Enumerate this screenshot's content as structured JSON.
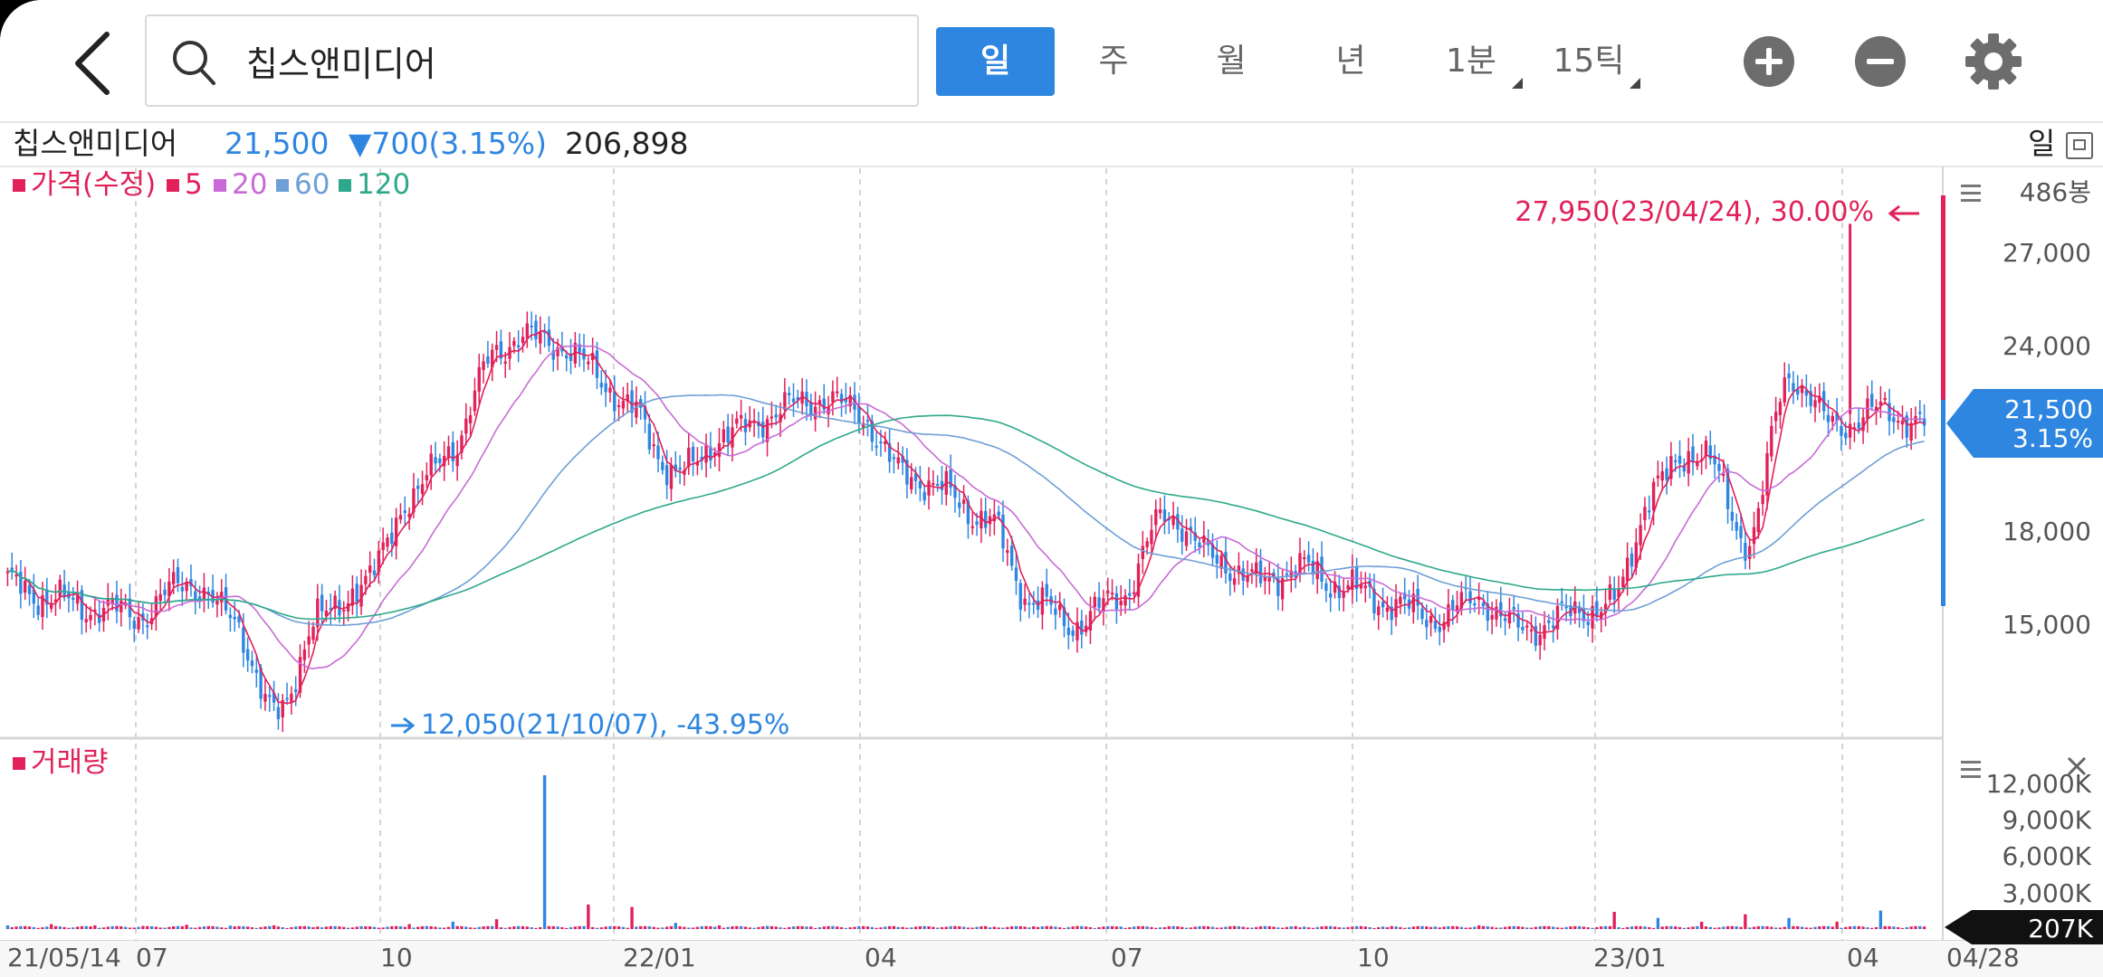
{
  "search": {
    "query": "칩스앤미디어"
  },
  "periods": [
    {
      "label": "일",
      "active": true
    },
    {
      "label": "주",
      "active": false
    },
    {
      "label": "월",
      "active": false
    },
    {
      "label": "년",
      "active": false
    },
    {
      "label": "1분",
      "active": false
    },
    {
      "label": "15틱",
      "active": false
    }
  ],
  "info": {
    "name": "칩스앤미디어",
    "price": "21,500",
    "change": "▼700(3.15%)",
    "volume": "206,898",
    "unit": "일"
  },
  "colors": {
    "up": "#e0215a",
    "down": "#2f86e0",
    "ma5": "#e0215a",
    "ma20": "#c86bd6",
    "ma60": "#6e9fd6",
    "ma120": "#2ea88a",
    "accent": "#2f86e0"
  },
  "chart_data": {
    "type": "candlestick",
    "legend": [
      "가격(수정)",
      "5",
      "20",
      "60",
      "120"
    ],
    "y_ticks": [
      "486봉",
      "27,000",
      "24,000",
      "18,000",
      "15,000"
    ],
    "current_price_label": "21,500",
    "current_change_label": "3.15%",
    "high_annotation": "27,950(23/04/24), 30.00%",
    "low_annotation": "12,050(21/10/07), -43.95%",
    "x_ticks": [
      "21/05/14",
      "07",
      "10",
      "22/01",
      "04",
      "07",
      "10",
      "23/01",
      "04",
      "04/28"
    ],
    "volume_title": "거래량",
    "volume_ticks": [
      "12,000K",
      "9,000K",
      "6,000K",
      "3,000K"
    ],
    "current_volume_label": "207K",
    "price_series": [
      [
        "21/05/14",
        16300
      ],
      [
        "21/06",
        15800
      ],
      [
        "21/07",
        15500
      ],
      [
        "21/08",
        15300
      ],
      [
        "21/08b",
        16400
      ],
      [
        "21/09",
        15300
      ],
      [
        "21/10/07",
        12050
      ],
      [
        "21/10b",
        15200
      ],
      [
        "21/11",
        16300
      ],
      [
        "21/11b",
        19000
      ],
      [
        "21/12",
        20800
      ],
      [
        "21/12b",
        24000
      ],
      [
        "22/01",
        24300
      ],
      [
        "22/01b",
        23400
      ],
      [
        "22/02",
        21900
      ],
      [
        "22/03",
        19800
      ],
      [
        "22/03b",
        21000
      ],
      [
        "22/04",
        21700
      ],
      [
        "22/04b",
        22300
      ],
      [
        "22/05",
        22000
      ],
      [
        "22/05b",
        20000
      ],
      [
        "22/06",
        19300
      ],
      [
        "22/06b",
        18300
      ],
      [
        "22/07",
        15700
      ],
      [
        "22/07b",
        15000
      ],
      [
        "22/08",
        16000
      ],
      [
        "22/08b",
        18600
      ],
      [
        "22/09",
        17200
      ],
      [
        "22/09b",
        16400
      ],
      [
        "22/10",
        16800
      ],
      [
        "22/10b",
        16200
      ],
      [
        "22/11",
        15700
      ],
      [
        "22/11b",
        15200
      ],
      [
        "22/12",
        15800
      ],
      [
        "22/12b",
        14800
      ],
      [
        "23/01",
        15300
      ],
      [
        "23/01b",
        15700
      ],
      [
        "23/02",
        19600
      ],
      [
        "23/02b",
        20700
      ],
      [
        "23/03",
        17700
      ],
      [
        "23/03b",
        23000
      ],
      [
        "23/04",
        21400
      ],
      [
        "23/04/24",
        21900
      ],
      [
        "23/04/28",
        21500
      ]
    ],
    "volume_series": [
      300,
      400,
      300,
      250,
      350,
      280,
      300,
      200,
      220,
      400,
      600,
      800,
      12500,
      2000,
      1800,
      500,
      300,
      250,
      200,
      180,
      160,
      150,
      140,
      220,
      250,
      200,
      150,
      180,
      160,
      140,
      120,
      150,
      200,
      300,
      180,
      160,
      1400,
      900,
      600,
      1200,
      900,
      600,
      1500,
      207
    ]
  }
}
